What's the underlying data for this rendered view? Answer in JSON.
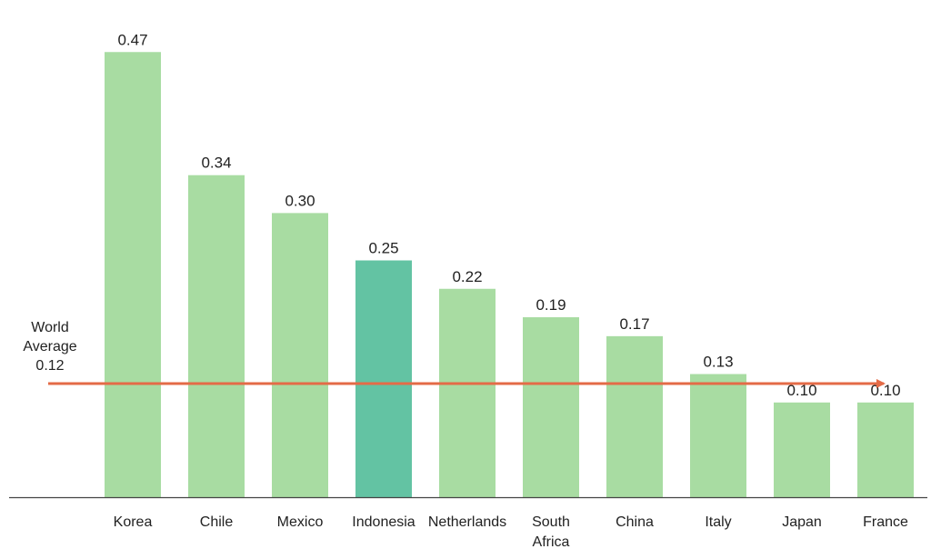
{
  "chart_data": {
    "type": "bar",
    "title": "",
    "xlabel": "",
    "ylabel": "",
    "ylim": [
      0,
      0.5
    ],
    "grid": false,
    "categories": [
      "Korea",
      "Chile",
      "Mexico",
      "Indonesia",
      "Netherlands",
      "South Africa",
      "China",
      "Italy",
      "Japan",
      "France"
    ],
    "category_lines": [
      [
        "Korea"
      ],
      [
        "Chile"
      ],
      [
        "Mexico"
      ],
      [
        "Indonesia"
      ],
      [
        "Netherlands"
      ],
      [
        "South",
        "Africa"
      ],
      [
        "China"
      ],
      [
        "Italy"
      ],
      [
        "Japan"
      ],
      [
        "France"
      ]
    ],
    "values": [
      0.47,
      0.34,
      0.3,
      0.25,
      0.22,
      0.19,
      0.17,
      0.13,
      0.1,
      0.1
    ],
    "value_labels": [
      "0.47",
      "0.34",
      "0.30",
      "0.25",
      "0.22",
      "0.19",
      "0.17",
      "0.13",
      "0.10",
      "0.10"
    ],
    "highlight_category": "Indonesia",
    "colors": {
      "bar": "#a8dca2",
      "highlight": "#63c3a3",
      "reference_line": "#e46b47",
      "axis": "#444444",
      "text": "#222222"
    },
    "reference_line": {
      "value": 0.12,
      "label_lines": [
        "World",
        "Average",
        "0.12"
      ]
    }
  }
}
